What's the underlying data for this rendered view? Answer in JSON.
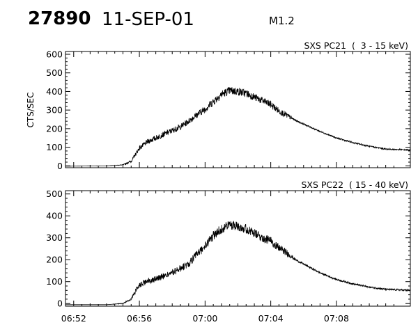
{
  "header": {
    "event_id": "27890",
    "date": "11-SEP-01",
    "flare_class": "M1.2"
  },
  "chart_data": [
    {
      "type": "line",
      "title": "SXS PC21  (  3 - 15 keV)",
      "xlabel": "",
      "ylabel": "CTS/SEC",
      "x_range": [
        "06:51:30",
        "07:12:30"
      ],
      "x_ticks": [
        "06:52",
        "06:56",
        "07:00",
        "07:04",
        "07:08"
      ],
      "ylim": [
        -10,
        615
      ],
      "y_ticks": [
        0,
        100,
        200,
        300,
        400,
        500,
        600
      ],
      "grid": false,
      "x_tick_labels_shown": false,
      "series": [
        {
          "x": [
            "06:51:30",
            "06:54:00",
            "06:55:00",
            "06:55:30",
            "06:55:45",
            "06:56:00",
            "06:56:30",
            "06:57:00",
            "06:57:30",
            "06:58:00",
            "06:58:30",
            "06:59:00",
            "06:59:30",
            "07:00:00",
            "07:00:30",
            "07:01:00",
            "07:01:30",
            "07:02:00",
            "07:02:30",
            "07:03:00",
            "07:03:30",
            "07:04:00",
            "07:04:30",
            "07:05:00",
            "07:05:30",
            "07:06:00",
            "07:07:00",
            "07:08:00",
            "07:09:00",
            "07:10:00",
            "07:11:00",
            "07:12:30"
          ],
          "y": [
            -2,
            0,
            5,
            25,
            60,
            95,
            130,
            150,
            170,
            190,
            210,
            240,
            275,
            305,
            345,
            385,
            405,
            400,
            390,
            370,
            350,
            330,
            295,
            270,
            245,
            225,
            185,
            150,
            125,
            105,
            90,
            85
          ],
          "noise": [
            0,
            0,
            2,
            6,
            10,
            12,
            14,
            15,
            15,
            16,
            16,
            17,
            18,
            20,
            22,
            22,
            22,
            22,
            22,
            20,
            20,
            20,
            18,
            16,
            5,
            4,
            4,
            4,
            4,
            4,
            4,
            4
          ]
        }
      ]
    },
    {
      "type": "line",
      "title": "SXS PC22  ( 15 - 40 keV)",
      "xlabel": "",
      "ylabel": "",
      "x_range": [
        "06:51:30",
        "07:12:30"
      ],
      "x_ticks": [
        "06:52",
        "06:56",
        "07:00",
        "07:04",
        "07:08"
      ],
      "ylim": [
        -12,
        515
      ],
      "y_ticks": [
        0,
        100,
        200,
        300,
        400,
        500
      ],
      "grid": false,
      "x_tick_labels_shown": true,
      "series": [
        {
          "x": [
            "06:51:30",
            "06:54:00",
            "06:55:00",
            "06:55:30",
            "06:55:45",
            "06:56:00",
            "06:56:30",
            "06:57:00",
            "06:57:30",
            "06:58:00",
            "06:58:30",
            "06:59:00",
            "06:59:30",
            "07:00:00",
            "07:00:30",
            "07:01:00",
            "07:01:30",
            "07:02:00",
            "07:02:30",
            "07:03:00",
            "07:03:30",
            "07:04:00",
            "07:04:30",
            "07:05:00",
            "07:05:30",
            "07:06:00",
            "07:07:00",
            "07:08:00",
            "07:09:00",
            "07:10:00",
            "07:11:00",
            "07:12:30"
          ],
          "y": [
            -5,
            -5,
            0,
            20,
            55,
            85,
            100,
            115,
            125,
            140,
            160,
            180,
            225,
            260,
            310,
            340,
            360,
            355,
            340,
            320,
            300,
            285,
            255,
            230,
            200,
            180,
            140,
            110,
            90,
            75,
            65,
            60
          ],
          "noise": [
            0,
            0,
            2,
            6,
            10,
            12,
            14,
            15,
            15,
            16,
            16,
            17,
            18,
            20,
            22,
            22,
            22,
            22,
            22,
            20,
            20,
            20,
            18,
            16,
            5,
            4,
            4,
            4,
            4,
            4,
            4,
            4
          ]
        }
      ]
    }
  ]
}
